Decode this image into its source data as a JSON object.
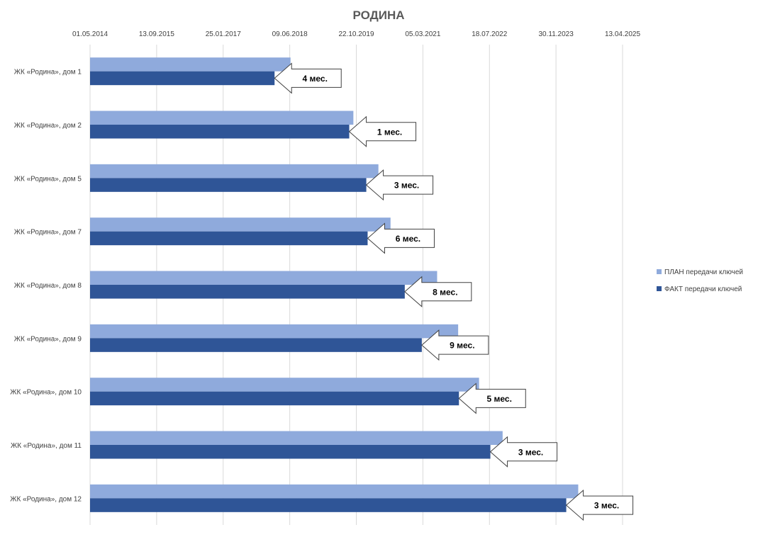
{
  "chart_data": {
    "type": "bar",
    "orientation": "horizontal",
    "title": "РОДИНА",
    "x_axis_position": "top",
    "x_ticks": [
      "01.05.2014",
      "13.09.2015",
      "25.01.2017",
      "09.06.2018",
      "22.10.2019",
      "05.03.2021",
      "18.07.2022",
      "30.11.2023",
      "13.04.2025"
    ],
    "xlim": [
      "2014-05-01",
      "2025-04-13"
    ],
    "grid": true,
    "legend_position": "right",
    "categories": [
      "ЖК «Родина», дом 1",
      "ЖК «Родина», дом 2",
      "ЖК «Родина», дом 5",
      "ЖК «Родина», дом 7",
      "ЖК «Родина», дом 8",
      "ЖК «Родина», дом 9",
      "ЖК «Родина», дом 10",
      "ЖК «Родина», дом 11",
      "ЖК «Родина», дом 12"
    ],
    "series": [
      {
        "name": "ПЛАН передачи ключей",
        "color": "#8FAADC",
        "values": [
          "2018-06-15",
          "2019-09-30",
          "2020-04-05",
          "2020-07-05",
          "2021-06-20",
          "2021-11-25",
          "2022-05-01",
          "2022-10-25",
          "2024-05-15"
        ]
      },
      {
        "name": "ФАКТ передачи ключей",
        "color": "#2F5597",
        "values": [
          "2018-02-15",
          "2019-08-30",
          "2020-01-05",
          "2020-01-15",
          "2020-10-20",
          "2021-02-25",
          "2021-12-01",
          "2022-07-25",
          "2024-02-15"
        ]
      }
    ],
    "annotations": [
      "4 мес.",
      "1 мес.",
      "3 мес.",
      "6 мес.",
      "8 мес.",
      "9 мес.",
      "5 мес.",
      "3 мес.",
      "3 мес."
    ]
  }
}
